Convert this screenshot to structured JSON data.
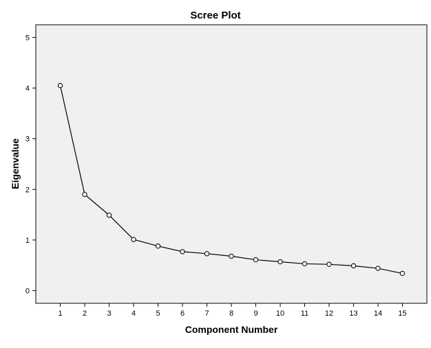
{
  "chart_data": {
    "type": "line",
    "title": "Scree Plot",
    "xlabel": "Component Number",
    "ylabel": "Eigenvalue",
    "x": [
      1,
      2,
      3,
      4,
      5,
      6,
      7,
      8,
      9,
      10,
      11,
      12,
      13,
      14,
      15
    ],
    "y_ticks": [
      0,
      1,
      2,
      3,
      4,
      5
    ],
    "xlim": [
      0,
      16
    ],
    "ylim": [
      -0.25,
      5.25
    ],
    "grid": false,
    "series": [
      {
        "values": [
          4.05,
          1.9,
          1.49,
          1.01,
          0.88,
          0.77,
          0.73,
          0.68,
          0.61,
          0.57,
          0.53,
          0.52,
          0.49,
          0.44,
          0.34
        ]
      }
    ],
    "colors": {
      "plot_background": "#f0f0f0",
      "line": "#000000",
      "marker_fill": "#f0f0f0"
    }
  }
}
